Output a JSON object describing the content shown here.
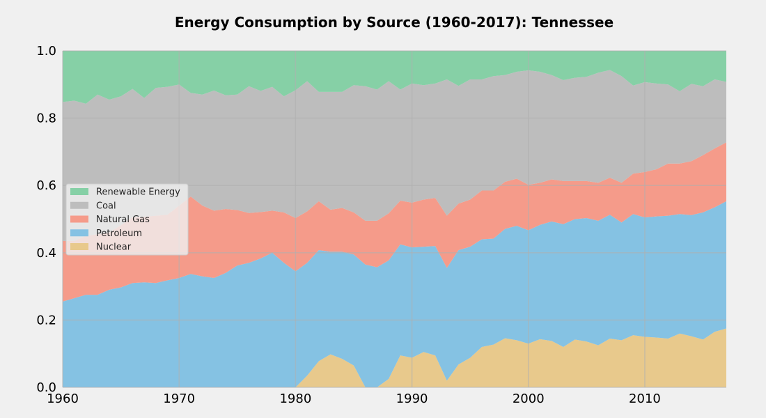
{
  "chart_data": {
    "type": "area",
    "stacked": true,
    "normalized": true,
    "title": "Energy Consumption by Source (1960-2017): Tennessee",
    "xlim": [
      1960,
      2017
    ],
    "ylim": [
      0,
      1
    ],
    "x_ticks": [
      1960,
      1970,
      1980,
      1990,
      2000,
      2010
    ],
    "y_ticks": [
      0.0,
      0.2,
      0.4,
      0.6,
      0.8,
      1.0
    ],
    "y_tick_labels": [
      "0.0",
      "0.2",
      "0.4",
      "0.6",
      "0.8",
      "1.0"
    ],
    "grid": true,
    "legend_position": "center-left",
    "background": "#f0f0f0",
    "x": [
      1960,
      1961,
      1962,
      1963,
      1964,
      1965,
      1966,
      1967,
      1968,
      1969,
      1970,
      1971,
      1972,
      1973,
      1974,
      1975,
      1976,
      1977,
      1978,
      1979,
      1980,
      1981,
      1982,
      1983,
      1984,
      1985,
      1986,
      1987,
      1988,
      1989,
      1990,
      1991,
      1992,
      1993,
      1994,
      1995,
      1996,
      1997,
      1998,
      1999,
      2000,
      2001,
      2002,
      2003,
      2004,
      2005,
      2006,
      2007,
      2008,
      2009,
      2010,
      2011,
      2012,
      2013,
      2014,
      2015,
      2016,
      2017
    ],
    "series": [
      {
        "name": "Nuclear",
        "color": "#e8c98c",
        "values": [
          0,
          0,
          0,
          0,
          0,
          0,
          0,
          0,
          0,
          0,
          0,
          0,
          0,
          0,
          0,
          0,
          0,
          0,
          0,
          0,
          0,
          0.035,
          0.078,
          0.098,
          0.085,
          0.065,
          0,
          0,
          0.025,
          0.095,
          0.088,
          0.105,
          0.095,
          0.02,
          0.068,
          0.088,
          0.12,
          0.127,
          0.146,
          0.14,
          0.13,
          0.143,
          0.138,
          0.12,
          0.142,
          0.136,
          0.125,
          0.145,
          0.14,
          0.155,
          0.15,
          0.148,
          0.145,
          0.16,
          0.152,
          0.142,
          0.165,
          0.175
        ]
      },
      {
        "name": "Petroleum",
        "color": "#85c2e3",
        "values": [
          0.255,
          0.265,
          0.275,
          0.275,
          0.29,
          0.297,
          0.31,
          0.312,
          0.31,
          0.318,
          0.325,
          0.337,
          0.33,
          0.325,
          0.34,
          0.362,
          0.37,
          0.383,
          0.4,
          0.37,
          0.345,
          0.335,
          0.33,
          0.305,
          0.318,
          0.33,
          0.365,
          0.357,
          0.352,
          0.33,
          0.328,
          0.313,
          0.325,
          0.335,
          0.34,
          0.33,
          0.32,
          0.315,
          0.325,
          0.34,
          0.337,
          0.34,
          0.355,
          0.365,
          0.358,
          0.367,
          0.37,
          0.368,
          0.35,
          0.36,
          0.355,
          0.36,
          0.365,
          0.355,
          0.36,
          0.378,
          0.37,
          0.378
        ]
      },
      {
        "name": "Natural Gas",
        "color": "#f59b8a",
        "values": [
          0.18,
          0.17,
          0.175,
          0.18,
          0.17,
          0.185,
          0.195,
          0.195,
          0.2,
          0.195,
          0.215,
          0.23,
          0.21,
          0.2,
          0.19,
          0.165,
          0.148,
          0.138,
          0.125,
          0.15,
          0.158,
          0.153,
          0.145,
          0.125,
          0.13,
          0.125,
          0.13,
          0.138,
          0.14,
          0.13,
          0.133,
          0.14,
          0.143,
          0.155,
          0.138,
          0.14,
          0.145,
          0.143,
          0.14,
          0.14,
          0.135,
          0.125,
          0.125,
          0.128,
          0.113,
          0.11,
          0.113,
          0.11,
          0.118,
          0.12,
          0.135,
          0.14,
          0.155,
          0.15,
          0.16,
          0.17,
          0.175,
          0.175
        ]
      },
      {
        "name": "Coal",
        "color": "#bdbdbd",
        "values": [
          0.413,
          0.417,
          0.393,
          0.415,
          0.395,
          0.383,
          0.382,
          0.353,
          0.38,
          0.38,
          0.36,
          0.308,
          0.33,
          0.357,
          0.338,
          0.343,
          0.377,
          0.36,
          0.368,
          0.345,
          0.38,
          0.387,
          0.325,
          0.35,
          0.345,
          0.378,
          0.4,
          0.39,
          0.393,
          0.33,
          0.354,
          0.34,
          0.34,
          0.405,
          0.35,
          0.357,
          0.33,
          0.34,
          0.317,
          0.318,
          0.34,
          0.33,
          0.31,
          0.3,
          0.307,
          0.31,
          0.327,
          0.32,
          0.317,
          0.262,
          0.267,
          0.255,
          0.235,
          0.215,
          0.23,
          0.205,
          0.205,
          0.18
        ]
      },
      {
        "name": "Renewable Energy",
        "color": "#86d0a6",
        "values": [
          0.152,
          0.148,
          0.157,
          0.13,
          0.145,
          0.135,
          0.113,
          0.14,
          0.11,
          0.107,
          0.1,
          0.125,
          0.13,
          0.118,
          0.132,
          0.13,
          0.105,
          0.119,
          0.107,
          0.135,
          0.117,
          0.09,
          0.122,
          0.122,
          0.122,
          0.102,
          0.105,
          0.115,
          0.09,
          0.115,
          0.097,
          0.102,
          0.097,
          0.085,
          0.104,
          0.085,
          0.085,
          0.075,
          0.072,
          0.062,
          0.058,
          0.062,
          0.072,
          0.087,
          0.08,
          0.077,
          0.065,
          0.057,
          0.075,
          0.103,
          0.093,
          0.097,
          0.1,
          0.12,
          0.098,
          0.105,
          0.085,
          0.092
        ]
      }
    ]
  }
}
